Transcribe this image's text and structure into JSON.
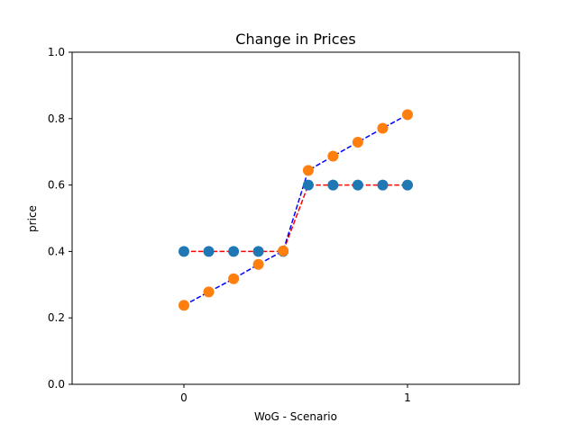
{
  "chart_data": {
    "type": "scatter",
    "title": "Change in Prices",
    "xlabel": "WoG - Scenario",
    "ylabel": "price",
    "xlim": [
      -0.5,
      1.5
    ],
    "ylim": [
      0.0,
      1.0
    ],
    "xticks": [
      0,
      1
    ],
    "xtick_labels": [
      "0",
      "1"
    ],
    "yticks": [
      0.0,
      0.2,
      0.4,
      0.6,
      0.8,
      1.0
    ],
    "ytick_labels": [
      "0.0",
      "0.2",
      "0.4",
      "0.6",
      "0.8",
      "1.0"
    ],
    "grid": false,
    "series": [
      {
        "color": "#1f77b4",
        "line_color": "#ff0000",
        "x": [
          0.0,
          0.111,
          0.222,
          0.333,
          0.444,
          0.556,
          0.667,
          0.778,
          0.889,
          1.0
        ],
        "y": [
          0.4,
          0.4,
          0.4,
          0.4,
          0.4,
          0.6,
          0.6,
          0.6,
          0.6,
          0.6
        ]
      },
      {
        "color": "#ff7f0e",
        "line_color": "#0000ff",
        "x": [
          0.0,
          0.111,
          0.222,
          0.333,
          0.444,
          0.556,
          0.667,
          0.778,
          0.889,
          1.0
        ],
        "y": [
          0.238,
          0.278,
          0.318,
          0.361,
          0.402,
          0.644,
          0.687,
          0.729,
          0.771,
          0.812
        ]
      }
    ]
  }
}
